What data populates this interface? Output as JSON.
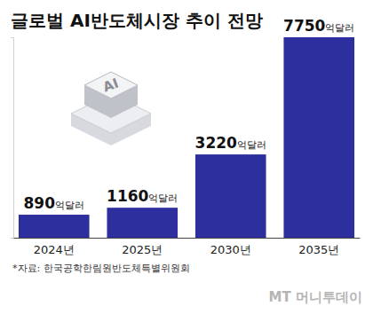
{
  "chart_data": {
    "type": "bar",
    "title": "글로벌 AI반도체시장 추이 전망",
    "categories": [
      "2024년",
      "2025년",
      "2030년",
      "2035년"
    ],
    "values": [
      890,
      1160,
      3220,
      7750
    ],
    "value_labels": [
      "890억달러",
      "1160억달러",
      "3220억달러",
      "7750억달러"
    ],
    "color": "#2e2f9e",
    "ylim": [
      0,
      7750
    ],
    "yticks": [
      0,
      7750
    ],
    "tick_labels": "x",
    "data_labels": true,
    "grid": false,
    "icon_label": "AI",
    "source": "*자료: 한국공학한림원반도체특별위원회",
    "watermark": "MT 머니투데이"
  }
}
